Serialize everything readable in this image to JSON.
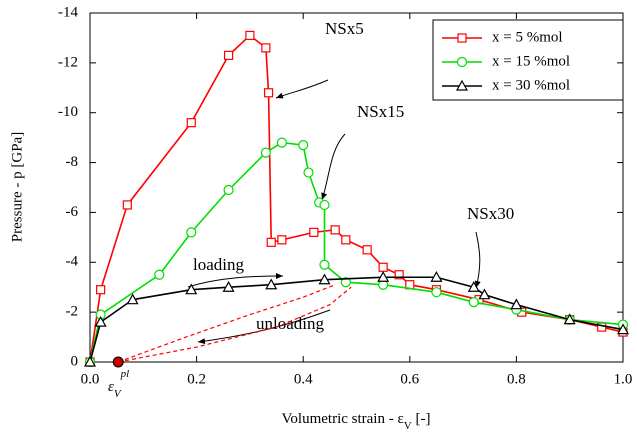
{
  "chart_data": {
    "type": "line",
    "ylabel": "Pressure - p [GPa]",
    "xlabel": {
      "text": "Volumetric strain - ε",
      "sub": "V",
      "end": " [-]"
    },
    "xlim": [
      0,
      1
    ],
    "ylim": [
      0,
      -14
    ],
    "xticks": [
      {
        "value": 0,
        "label": "0.0"
      },
      0.2,
      0.4,
      0.6,
      0.8,
      {
        "value": 1,
        "label": "1.0"
      }
    ],
    "yticks": [
      0,
      -2,
      -4,
      -6,
      -8,
      -10,
      -12,
      -14
    ],
    "legend": "upper right",
    "series": [
      {
        "name": "x = 5 %mol",
        "color": "#ff0000",
        "marker": "square",
        "x": [
          0,
          0.02,
          0.07,
          0.19,
          0.26,
          0.3,
          0.33,
          0.335,
          0.34,
          0.36,
          0.42,
          0.46,
          0.48,
          0.52,
          0.55,
          0.58,
          0.6,
          0.65,
          0.73,
          0.81,
          0.9,
          0.96,
          1.0
        ],
        "values": [
          0,
          -2.9,
          -6.3,
          -9.6,
          -12.3,
          -13.1,
          -12.6,
          -10.8,
          -4.8,
          -4.9,
          -5.2,
          -5.3,
          -4.9,
          -4.5,
          -3.8,
          -3.5,
          -3.1,
          -2.9,
          -2.5,
          -2.0,
          -1.7,
          -1.4,
          -1.2
        ]
      },
      {
        "name": "x = 15 %mol",
        "color": "#00dd00",
        "marker": "circle",
        "x": [
          0,
          0.02,
          0.13,
          0.19,
          0.26,
          0.33,
          0.36,
          0.4,
          0.41,
          0.43,
          0.44,
          0.44,
          0.48,
          0.55,
          0.65,
          0.72,
          0.8,
          0.9,
          1.0
        ],
        "values": [
          0,
          -1.9,
          -3.5,
          -5.2,
          -6.9,
          -8.4,
          -8.8,
          -8.7,
          -7.6,
          -6.4,
          -6.3,
          -3.9,
          -3.2,
          -3.1,
          -2.8,
          -2.4,
          -2.1,
          -1.7,
          -1.5
        ]
      },
      {
        "name": "x = 30 %mol",
        "color": "#000000",
        "marker": "triangle",
        "x": [
          0,
          0.02,
          0.08,
          0.19,
          0.26,
          0.34,
          0.44,
          0.55,
          0.65,
          0.72,
          0.74,
          0.8,
          0.9,
          1.0
        ],
        "values": [
          0,
          -1.6,
          -2.5,
          -2.9,
          -3.0,
          -3.1,
          -3.3,
          -3.4,
          -3.4,
          -3.0,
          -2.7,
          -2.3,
          -1.7,
          -1.3
        ]
      }
    ],
    "unloading_curves": [
      {
        "color": "#ff0000",
        "x": [
          0.053,
          0.18,
          0.3,
          0.4,
          0.46
        ],
        "values": [
          0,
          -1.0,
          -1.9,
          -2.6,
          -3.1
        ]
      },
      {
        "color": "#ff0000",
        "x": [
          0.053,
          0.2,
          0.35,
          0.45,
          0.49
        ],
        "values": [
          0,
          -0.6,
          -1.4,
          -2.3,
          -3.0
        ]
      }
    ],
    "plastic_point": {
      "x": 0.053,
      "value": 0,
      "color": "#cc0000"
    },
    "strain_label": {
      "base": "ε",
      "sub": "V",
      "sup": "pl"
    },
    "annotations": [
      "NSx5",
      "NSx15",
      "NSx30",
      "loading",
      "unloading"
    ]
  }
}
